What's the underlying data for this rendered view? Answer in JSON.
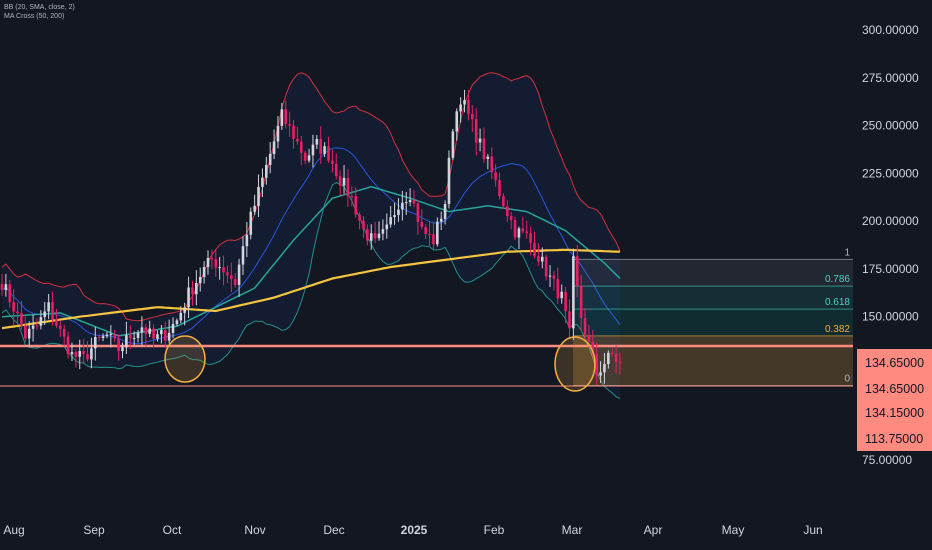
{
  "legend": {
    "bb": "BB (20, SMA, close, 2)",
    "ma": "MA Cross (50, 200)"
  },
  "colors": {
    "background": "#131722",
    "up_candle": "#d1d4dc",
    "down_candle": "#e91e63",
    "bb_upper": "#f23645",
    "bb_lower": "#26a69a",
    "bb_basis": "#2962ff",
    "ma50": "#26a69a",
    "ma200": "#f5c542",
    "support_line": "#ff8a80",
    "circle": "#f5b041",
    "fib_0382": "#f5b041",
    "fib_0618": "#4dd0c0",
    "fib_0786": "#4dd0c0",
    "price_tag": "#ff8a80"
  },
  "chart_data": {
    "type": "candlestick",
    "title": "",
    "xlabel": "",
    "ylabel": "",
    "ylim": [
      55,
      307
    ],
    "y_ticks": [
      "300.00000",
      "275.00000",
      "250.00000",
      "225.00000",
      "200.00000",
      "175.00000",
      "150.00000",
      "75.00000"
    ],
    "x_ticks": [
      "Aug",
      "Sep",
      "Oct",
      "Nov",
      "Dec",
      "2025",
      "Feb",
      "Mar",
      "Apr",
      "May",
      "Jun"
    ],
    "x_ticks_bold": [
      "2025"
    ],
    "price_tags": [
      "134.65000",
      "134.65000",
      "134.15000",
      "113.75000"
    ],
    "fib_levels": [
      {
        "label": "1",
        "value": 180
      },
      {
        "label": "0.786",
        "value": 166
      },
      {
        "label": "0.618",
        "value": 154
      },
      {
        "label": "0.382",
        "value": 140
      },
      {
        "label": "0",
        "value": 114
      }
    ],
    "support_levels": [
      134.65,
      113.75
    ],
    "close_path": [
      {
        "t": 0,
        "v": 168
      },
      {
        "t": 3,
        "v": 155
      },
      {
        "t": 6,
        "v": 140
      },
      {
        "t": 9,
        "v": 145
      },
      {
        "t": 12,
        "v": 155
      },
      {
        "t": 15,
        "v": 142
      },
      {
        "t": 18,
        "v": 130
      },
      {
        "t": 21,
        "v": 128
      },
      {
        "t": 24,
        "v": 136
      },
      {
        "t": 27,
        "v": 140
      },
      {
        "t": 30,
        "v": 133
      },
      {
        "t": 33,
        "v": 140
      },
      {
        "t": 36,
        "v": 145
      },
      {
        "t": 39,
        "v": 138
      },
      {
        "t": 42,
        "v": 141
      },
      {
        "t": 45,
        "v": 148
      },
      {
        "t": 48,
        "v": 162
      },
      {
        "t": 51,
        "v": 172
      },
      {
        "t": 54,
        "v": 180
      },
      {
        "t": 57,
        "v": 175
      },
      {
        "t": 60,
        "v": 168
      },
      {
        "t": 63,
        "v": 195
      },
      {
        "t": 66,
        "v": 215
      },
      {
        "t": 69,
        "v": 235
      },
      {
        "t": 72,
        "v": 255
      },
      {
        "t": 75,
        "v": 245
      },
      {
        "t": 78,
        "v": 233
      },
      {
        "t": 81,
        "v": 240
      },
      {
        "t": 84,
        "v": 235
      },
      {
        "t": 87,
        "v": 222
      },
      {
        "t": 90,
        "v": 212
      },
      {
        "t": 93,
        "v": 195
      },
      {
        "t": 96,
        "v": 188
      },
      {
        "t": 99,
        "v": 195
      },
      {
        "t": 102,
        "v": 210
      },
      {
        "t": 105,
        "v": 215
      },
      {
        "t": 108,
        "v": 195
      },
      {
        "t": 111,
        "v": 190
      },
      {
        "t": 114,
        "v": 210
      },
      {
        "t": 116,
        "v": 250
      },
      {
        "t": 118,
        "v": 265
      },
      {
        "t": 120,
        "v": 255
      },
      {
        "t": 123,
        "v": 240
      },
      {
        "t": 126,
        "v": 225
      },
      {
        "t": 129,
        "v": 210
      },
      {
        "t": 132,
        "v": 195
      },
      {
        "t": 135,
        "v": 192
      },
      {
        "t": 138,
        "v": 182
      },
      {
        "t": 141,
        "v": 170
      },
      {
        "t": 144,
        "v": 160
      },
      {
        "t": 146,
        "v": 140
      },
      {
        "t": 147,
        "v": 178
      },
      {
        "t": 149,
        "v": 150
      },
      {
        "t": 151,
        "v": 135
      },
      {
        "t": 153,
        "v": 120
      },
      {
        "t": 155,
        "v": 126
      },
      {
        "t": 157,
        "v": 130
      },
      {
        "t": 159,
        "v": 125
      }
    ],
    "ma200": [
      {
        "t": 0,
        "v": 144
      },
      {
        "t": 20,
        "v": 150
      },
      {
        "t": 40,
        "v": 155
      },
      {
        "t": 55,
        "v": 153
      },
      {
        "t": 70,
        "v": 160
      },
      {
        "t": 85,
        "v": 170
      },
      {
        "t": 100,
        "v": 176
      },
      {
        "t": 115,
        "v": 180
      },
      {
        "t": 130,
        "v": 184
      },
      {
        "t": 145,
        "v": 185
      },
      {
        "t": 159,
        "v": 184
      }
    ],
    "ma50": [
      {
        "t": 0,
        "v": 150
      },
      {
        "t": 15,
        "v": 152
      },
      {
        "t": 30,
        "v": 140
      },
      {
        "t": 45,
        "v": 145
      },
      {
        "t": 55,
        "v": 155
      },
      {
        "t": 65,
        "v": 165
      },
      {
        "t": 75,
        "v": 190
      },
      {
        "t": 85,
        "v": 212
      },
      {
        "t": 95,
        "v": 218
      },
      {
        "t": 105,
        "v": 212
      },
      {
        "t": 115,
        "v": 205
      },
      {
        "t": 125,
        "v": 208
      },
      {
        "t": 135,
        "v": 205
      },
      {
        "t": 145,
        "v": 195
      },
      {
        "t": 155,
        "v": 178
      },
      {
        "t": 159,
        "v": 170
      }
    ]
  }
}
